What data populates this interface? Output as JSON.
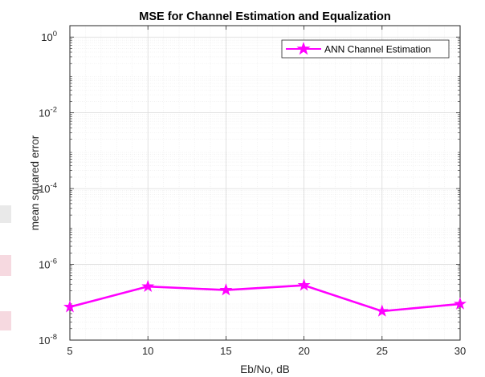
{
  "chart_data": {
    "type": "line",
    "title": "MSE for Channel Estimation and Equalization",
    "xlabel": "Eb/No, dB",
    "ylabel": "mean squared error",
    "x": [
      5,
      10,
      15,
      20,
      25,
      30
    ],
    "xlim": [
      5,
      30
    ],
    "xticks": [
      5,
      10,
      15,
      20,
      25,
      30
    ],
    "yscale": "log",
    "ylim": [
      1e-08,
      2
    ],
    "yticks": [
      {
        "base": "10",
        "exp": "0",
        "value": 1
      },
      {
        "base": "10",
        "exp": "-2",
        "value": 0.01
      },
      {
        "base": "10",
        "exp": "-4",
        "value": 0.0001
      },
      {
        "base": "10",
        "exp": "-6",
        "value": 1e-06
      },
      {
        "base": "10",
        "exp": "-8",
        "value": 1e-08
      }
    ],
    "grid": true,
    "minor_grid": true,
    "legend_position": "top-right",
    "series": [
      {
        "name": "ANN Channel Estimation",
        "color": "#ff00ff",
        "marker": "star",
        "values": [
          7.5e-08,
          2.6e-07,
          2.1e-07,
          2.8e-07,
          5.8e-08,
          9e-08
        ]
      }
    ]
  }
}
